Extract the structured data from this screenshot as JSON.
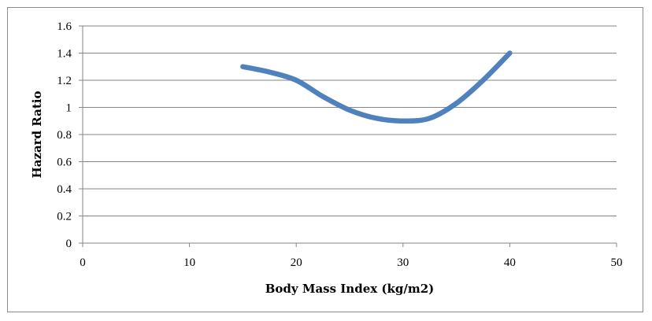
{
  "chart_data": {
    "type": "line",
    "title": "",
    "xlabel": "Body Mass Index (kg/m2)",
    "ylabel": "Hazard Ratio",
    "xlim": [
      0,
      50
    ],
    "ylim": [
      0,
      1.6
    ],
    "x_ticks": [
      0,
      10,
      20,
      30,
      40,
      50
    ],
    "y_ticks": [
      0,
      0.2,
      0.4,
      0.6,
      0.8,
      1,
      1.2,
      1.4,
      1.6
    ],
    "x_tick_labels": [
      "0",
      "10",
      "20",
      "30",
      "40",
      "50"
    ],
    "y_tick_labels": [
      "0",
      "0.2",
      "0.4",
      "0.6",
      "0.8",
      "1",
      "1.2",
      "1.4",
      "1.6"
    ],
    "grid": true,
    "legend": "none",
    "series": [
      {
        "color": "#4f81bd",
        "x": [
          15,
          17.5,
          20,
          22.5,
          25,
          27.5,
          30,
          32.5,
          35,
          37.5,
          40
        ],
        "y": [
          1.3,
          1.26,
          1.2,
          1.08,
          0.98,
          0.92,
          0.9,
          0.92,
          1.03,
          1.2,
          1.4
        ]
      }
    ]
  }
}
